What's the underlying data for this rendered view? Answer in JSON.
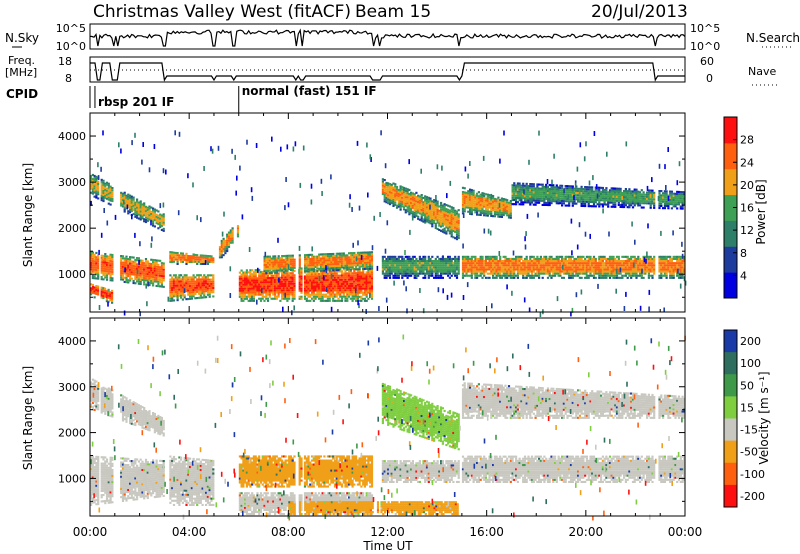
{
  "header": {
    "title": "Christmas Valley West (fitACF)",
    "beam": "Beam 15",
    "date": "20/Jul/2013"
  },
  "params": {
    "nsky_label": "N.Sky",
    "nsky_ticks": [
      "10^5",
      "10^0"
    ],
    "nsearch_label": "N.Search",
    "nsearch_ticks": [
      "10^5",
      "10^0"
    ],
    "freq_label": [
      "Freq.",
      "[MHz]"
    ],
    "freq_ticks": [
      "18",
      "8"
    ],
    "nave_label": "Nave",
    "nave_ticks": [
      "60",
      "0"
    ],
    "cpid_label": "CPID",
    "cpid_modes": [
      {
        "label": "rbsp 201 IF",
        "start_hour": 0.2
      },
      {
        "label": "normal (fast) 151 IF",
        "start_hour": 6.0
      }
    ],
    "data_gaps_hours": [
      0.35,
      0.95,
      1.1,
      3.0,
      5.0,
      5.8,
      8.3,
      8.55,
      11.45,
      11.65,
      14.9,
      22.8
    ]
  },
  "chart_data": [
    {
      "type": "heatmap",
      "name": "power",
      "ylabel": "Slant Range [km]",
      "xlabel": "Time UT",
      "x_ticks": [
        "00:00",
        "04:00",
        "08:00",
        "12:00",
        "16:00",
        "20:00",
        "00:00"
      ],
      "x_range_hours": [
        0,
        24
      ],
      "y_ticks": [
        1000,
        2000,
        3000,
        4000
      ],
      "y_range_km": [
        180,
        4500
      ],
      "colorbar": {
        "label": "Power [dB]",
        "ticks": [
          4,
          8,
          12,
          16,
          20,
          24,
          28
        ],
        "range": [
          0,
          32
        ],
        "colors": [
          "#0000e0",
          "#1e3c9e",
          "#2e7f6a",
          "#3ea055",
          "#f0a018",
          "#ff6010",
          "#ff1010"
        ]
      },
      "bands": [
        {
          "t0": 0.0,
          "t1": 3.0,
          "r0": 2700,
          "r1": 3200,
          "r0e": 1900,
          "r1e": 2300,
          "value": 20
        },
        {
          "t0": 0.0,
          "t1": 3.0,
          "r0": 900,
          "r1": 1500,
          "r0e": 700,
          "r1e": 1300,
          "value": 26
        },
        {
          "t0": 0.0,
          "t1": 1.2,
          "r0": 500,
          "r1": 800,
          "r0e": 300,
          "r1e": 600,
          "value": 28
        },
        {
          "t0": 3.2,
          "t1": 5.0,
          "r0": 1200,
          "r1": 1500,
          "r0e": 1200,
          "r1e": 1400,
          "value": 24
        },
        {
          "t0": 3.2,
          "t1": 5.0,
          "r0": 400,
          "r1": 1000,
          "r0e": 500,
          "r1e": 1000,
          "value": 26
        },
        {
          "t0": 5.2,
          "t1": 6.0,
          "r0": 1300,
          "r1": 1700,
          "r0e": 1800,
          "r1e": 2200,
          "value": 22
        },
        {
          "t0": 6.0,
          "t1": 11.4,
          "r0": 400,
          "r1": 1100,
          "r0e": 400,
          "r1e": 1200,
          "value": 28
        },
        {
          "t0": 7.0,
          "t1": 11.4,
          "r0": 1000,
          "r1": 1400,
          "r0e": 1100,
          "r1e": 1500,
          "value": 24
        },
        {
          "t0": 11.7,
          "t1": 14.9,
          "r0": 2600,
          "r1": 3100,
          "r0e": 1700,
          "r1e": 2400,
          "value": 22
        },
        {
          "t0": 11.7,
          "t1": 14.9,
          "r0": 900,
          "r1": 1400,
          "r0e": 900,
          "r1e": 1400,
          "value": 16
        },
        {
          "t0": 15.0,
          "t1": 24.0,
          "r0": 900,
          "r1": 1400,
          "r0e": 900,
          "r1e": 1400,
          "value": 24
        },
        {
          "t0": 15.0,
          "t1": 17.0,
          "r0": 2300,
          "r1": 2900,
          "r0e": 2200,
          "r1e": 2600,
          "value": 22
        },
        {
          "t0": 17.0,
          "t1": 24.0,
          "r0": 2500,
          "r1": 3000,
          "r0e": 2400,
          "r1e": 2800,
          "value": 16
        }
      ]
    },
    {
      "type": "heatmap",
      "name": "velocity",
      "ylabel": "Slant Range [km]",
      "xlabel": "Time UT",
      "x_ticks": [
        "00:00",
        "04:00",
        "08:00",
        "12:00",
        "16:00",
        "20:00",
        "00:00"
      ],
      "x_range_hours": [
        0,
        24
      ],
      "y_ticks": [
        1000,
        2000,
        3000,
        4000
      ],
      "y_range_km": [
        180,
        4500
      ],
      "colorbar": {
        "label": "Velocity [m s⁻¹]",
        "ticks": [
          "200",
          "100",
          "50",
          "15",
          "-15",
          "-50",
          "-100",
          "-200"
        ],
        "colors": [
          "#1a3aa8",
          "#2e6e5e",
          "#3e9a48",
          "#7fce40",
          "#c8c8c0",
          "#f0a018",
          "#ff6010",
          "#ff1010"
        ]
      },
      "bands": [
        {
          "t0": 0.0,
          "t1": 3.0,
          "r0": 2500,
          "r1": 3200,
          "r0e": 1900,
          "r1e": 2300,
          "value": 4
        },
        {
          "t0": 0.0,
          "t1": 3.0,
          "r0": 400,
          "r1": 1500,
          "r0e": 600,
          "r1e": 1400,
          "value": 4
        },
        {
          "t0": 3.2,
          "t1": 5.0,
          "r0": 400,
          "r1": 1500,
          "r0e": 400,
          "r1e": 1400,
          "value": 4
        },
        {
          "t0": 6.0,
          "t1": 11.4,
          "r0": 800,
          "r1": 1500,
          "r0e": 800,
          "r1e": 1500,
          "value": 5
        },
        {
          "t0": 6.0,
          "t1": 11.4,
          "r0": 200,
          "r1": 700,
          "r0e": 200,
          "r1e": 700,
          "value": 4
        },
        {
          "t0": 11.7,
          "t1": 14.9,
          "r0": 2200,
          "r1": 3100,
          "r0e": 1600,
          "r1e": 2400,
          "value": 3
        },
        {
          "t0": 11.7,
          "t1": 14.9,
          "r0": 900,
          "r1": 1400,
          "r0e": 900,
          "r1e": 1400,
          "value": 4
        },
        {
          "t0": 15.0,
          "t1": 24.0,
          "r0": 900,
          "r1": 1500,
          "r0e": 900,
          "r1e": 1500,
          "value": 4
        },
        {
          "t0": 15.0,
          "t1": 24.0,
          "r0": 2300,
          "r1": 3100,
          "r0e": 2300,
          "r1e": 2800,
          "value": 4
        },
        {
          "t0": 8.0,
          "t1": 15.0,
          "r0": 200,
          "r1": 500,
          "r0e": 200,
          "r1e": 500,
          "value": 5
        }
      ]
    }
  ]
}
